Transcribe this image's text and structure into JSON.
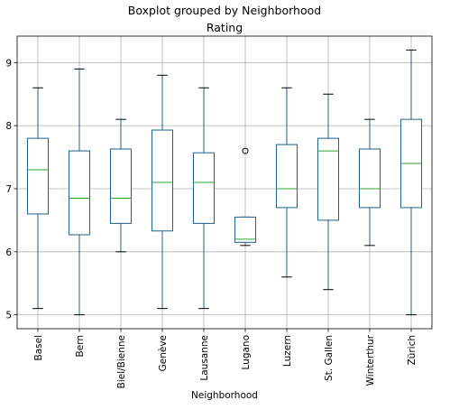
{
  "chart_data": {
    "type": "boxplot",
    "suptitle": "Boxplot grouped by Neighborhood",
    "title": "Rating",
    "xlabel": "Neighborhood",
    "ylabel": "",
    "ylim": [
      4.78,
      9.42
    ],
    "yticks": [
      5,
      6,
      7,
      8,
      9
    ],
    "grid": true,
    "colors": {
      "box": "#1f5f8b",
      "median": "#2ca02c",
      "grid": "#b0b0b0",
      "axis": "#000000"
    },
    "categories": [
      "Basel",
      "Bern",
      "Biel/Bienne",
      "Genève",
      "Lausanne",
      "Lugano",
      "Luzern",
      "St. Gallen",
      "Winterthur",
      "Zürich"
    ],
    "boxes": [
      {
        "category": "Basel",
        "whislo": 5.1,
        "q1": 6.6,
        "med": 7.3,
        "q3": 7.8,
        "whishi": 8.6,
        "fliers": []
      },
      {
        "category": "Bern",
        "whislo": 5.0,
        "q1": 6.27,
        "med": 6.85,
        "q3": 7.6,
        "whishi": 8.9,
        "fliers": []
      },
      {
        "category": "Biel/Bienne",
        "whislo": 6.0,
        "q1": 6.45,
        "med": 6.85,
        "q3": 7.63,
        "whishi": 8.1,
        "fliers": []
      },
      {
        "category": "Genève",
        "whislo": 5.1,
        "q1": 6.33,
        "med": 7.1,
        "q3": 7.93,
        "whishi": 8.8,
        "fliers": []
      },
      {
        "category": "Lausanne",
        "whislo": 5.1,
        "q1": 6.45,
        "med": 7.1,
        "q3": 7.57,
        "whishi": 8.6,
        "fliers": []
      },
      {
        "category": "Lugano",
        "whislo": 6.1,
        "q1": 6.15,
        "med": 6.2,
        "q3": 6.55,
        "whishi": 6.55,
        "fliers": [
          7.6
        ]
      },
      {
        "category": "Luzern",
        "whislo": 5.6,
        "q1": 6.7,
        "med": 7.0,
        "q3": 7.7,
        "whishi": 8.6,
        "fliers": []
      },
      {
        "category": "St. Gallen",
        "whislo": 5.4,
        "q1": 6.5,
        "med": 7.6,
        "q3": 7.8,
        "whishi": 8.5,
        "fliers": []
      },
      {
        "category": "Winterthur",
        "whislo": 6.1,
        "q1": 6.7,
        "med": 7.0,
        "q3": 7.63,
        "whishi": 8.1,
        "fliers": []
      },
      {
        "category": "Zürich",
        "whislo": 5.0,
        "q1": 6.7,
        "med": 7.4,
        "q3": 8.1,
        "whishi": 9.2,
        "fliers": []
      }
    ]
  }
}
